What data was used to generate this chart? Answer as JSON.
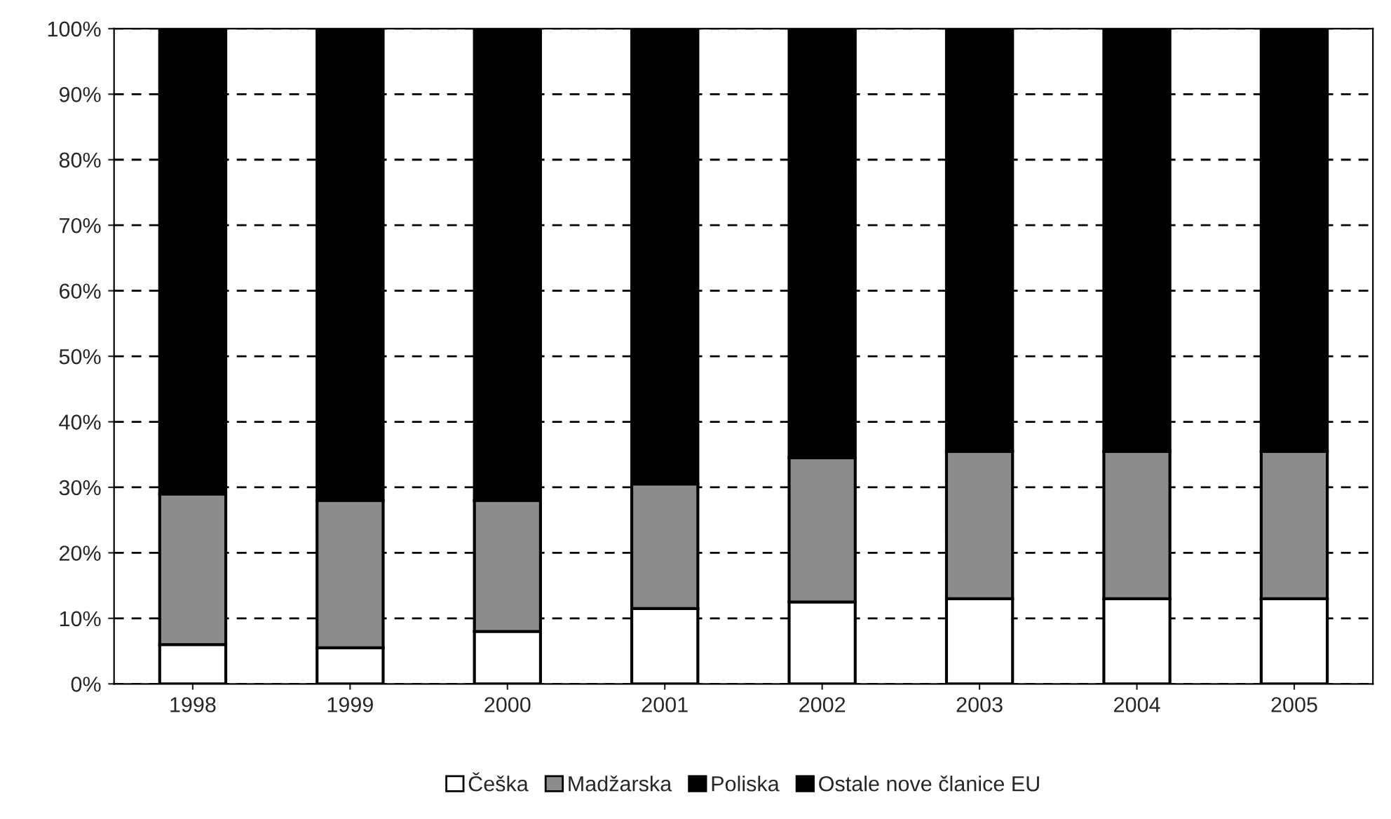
{
  "chart_data": {
    "type": "bar",
    "stacked": true,
    "categories": [
      "1998",
      "1999",
      "2000",
      "2001",
      "2002",
      "2003",
      "2004",
      "2005"
    ],
    "series": [
      {
        "name": "Češka",
        "color": "#ffffff",
        "values": [
          6,
          5.5,
          8,
          11.5,
          12.5,
          13,
          13,
          13
        ]
      },
      {
        "name": "Madžarska",
        "color": "#8c8c8c",
        "values": [
          23,
          22.5,
          20,
          19,
          22,
          22.5,
          22.5,
          22.5
        ]
      },
      {
        "name": "Poliska",
        "color": "#000000",
        "values": [
          null,
          null,
          null,
          null,
          null,
          null,
          null,
          null
        ]
      },
      {
        "name": "Ostale nove članice EU",
        "color": "#000000",
        "values": [
          71,
          72,
          72,
          69.5,
          65.5,
          64.5,
          64.5,
          64.5
        ]
      }
    ],
    "ylim": [
      0,
      100
    ],
    "yticks": [
      {
        "value": 0,
        "label": "0%"
      },
      {
        "value": 10,
        "label": "10%"
      },
      {
        "value": 20,
        "label": "20%"
      },
      {
        "value": 30,
        "label": "30%"
      },
      {
        "value": 40,
        "label": "40%"
      },
      {
        "value": 50,
        "label": "50%"
      },
      {
        "value": 60,
        "label": "60%"
      },
      {
        "value": 70,
        "label": "70%"
      },
      {
        "value": 80,
        "label": "80%"
      },
      {
        "value": 90,
        "label": "90%"
      },
      {
        "value": 100,
        "label": "100%"
      }
    ],
    "grid": "y",
    "line_style": "dashed",
    "legend": "bottom"
  }
}
